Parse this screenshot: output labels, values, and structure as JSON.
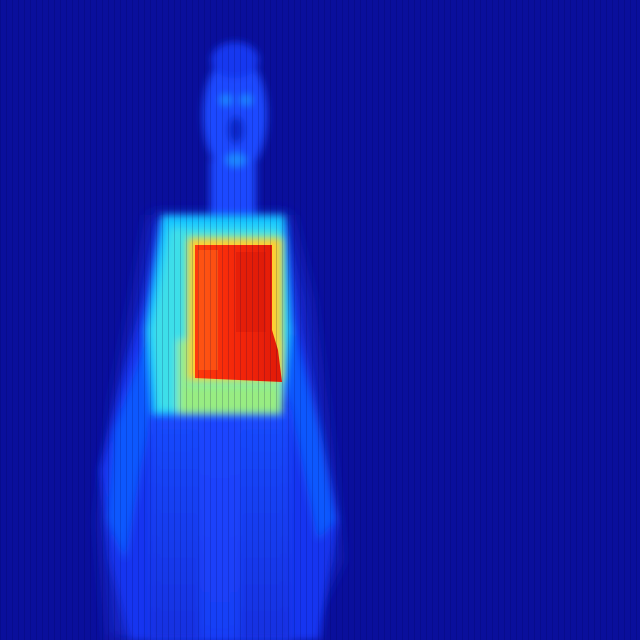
{
  "image": {
    "kind": "thermal-false-color",
    "palette": {
      "background": "#0a0f9c",
      "background_light": "#1420c8",
      "cool_blue": "#1a3cff",
      "mid_blue": "#0a6cff",
      "cyan": "#18c8ff",
      "aqua": "#6ef0c8",
      "green_yellow": "#b8f060",
      "orange": "#ff5a10",
      "red": "#e81e0a",
      "dark_red": "#b81200"
    },
    "subject": {
      "figure": "person-standing",
      "hot_region": "rectangular-panel-on-torso"
    }
  }
}
